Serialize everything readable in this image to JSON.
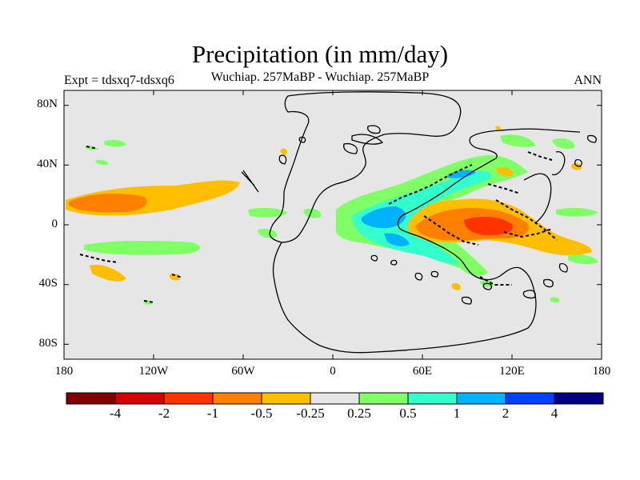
{
  "title": "Precipitation (in mm/day)",
  "subtitle": "Wuchiap. 257MaBP - Wuchiap. 257MaBP",
  "experiment_label": "Expt = tdsxq7-tdsxq6",
  "season_label": "ANN",
  "axes": {
    "y_ticks": [
      "80N",
      "40N",
      "0",
      "40S",
      "80S"
    ],
    "x_ticks": [
      "180",
      "120W",
      "60W",
      "0",
      "60E",
      "120E",
      "180"
    ]
  },
  "colorbar": {
    "labels": [
      "-4",
      "-2",
      "-1",
      "-0.5",
      "-0.25",
      "0.25",
      "0.5",
      "1",
      "2",
      "4"
    ],
    "colors": [
      "#800000",
      "#d40000",
      "#ff3300",
      "#ff7f00",
      "#ffbf00",
      "#e6e6e6",
      "#80ff66",
      "#33ffcc",
      "#00b2ff",
      "#0040ff",
      "#000080"
    ]
  },
  "colors": {
    "background": "#e6e6e6",
    "outline": "#000000"
  }
}
